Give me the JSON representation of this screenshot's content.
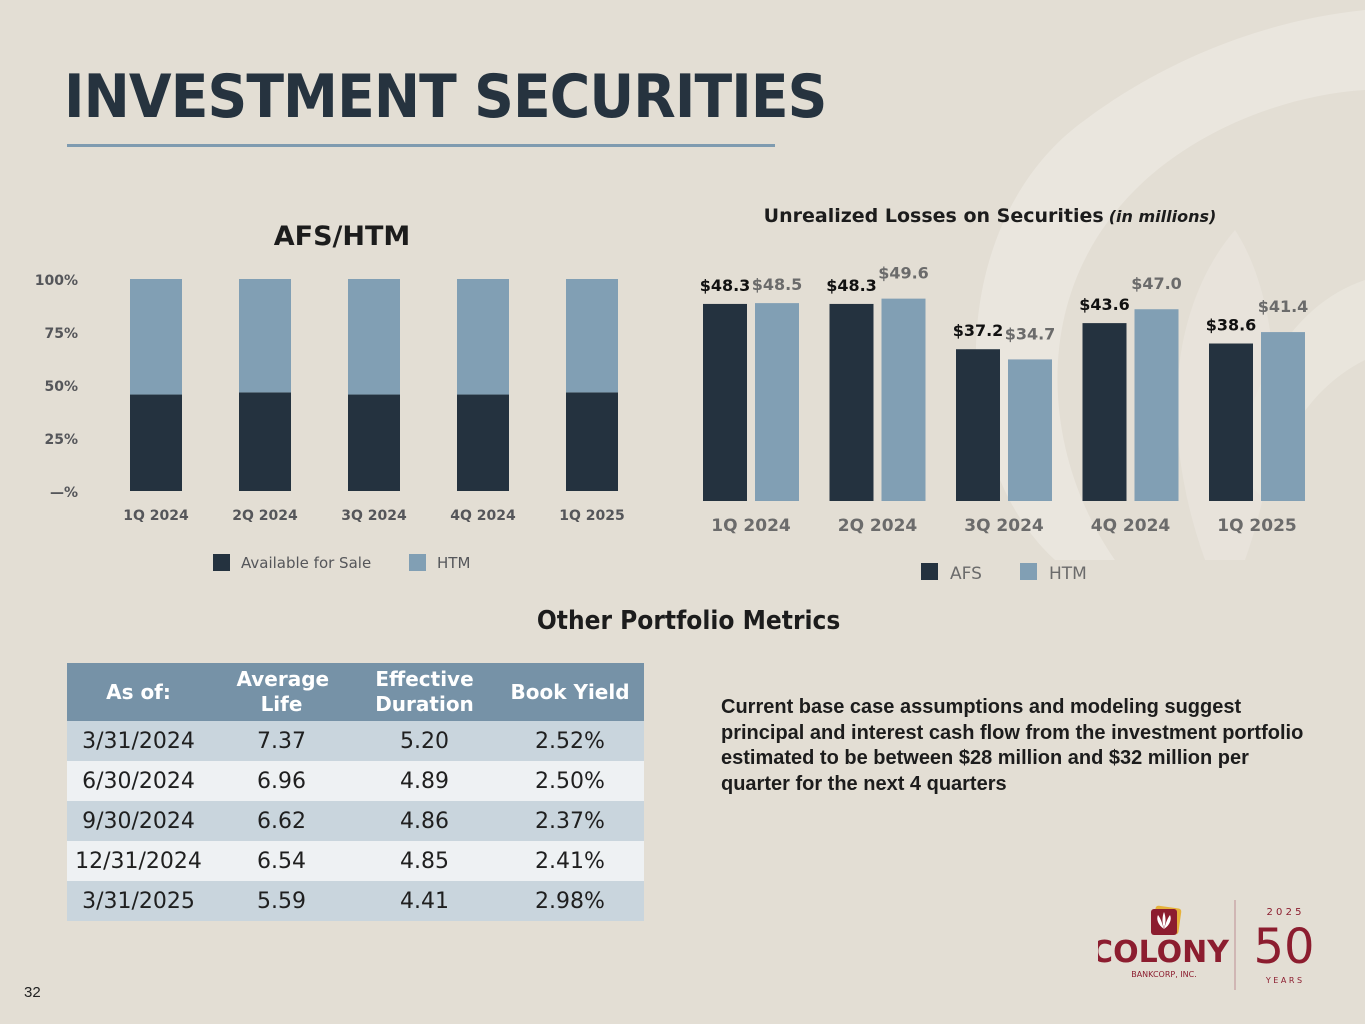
{
  "page": {
    "title": "INVESTMENT SECURITIES",
    "page_number": "32",
    "section_title": "Other Portfolio Metrics",
    "note": "Current base case assumptions and modeling suggest principal and interest cash flow from the investment portfolio estimated to be between $28 million and $32 million per quarter for the next 4 quarters"
  },
  "colors": {
    "afs": "#24323f",
    "htm": "#819fb4",
    "brand": "#8c1d2f",
    "accent_rule": "#7f9bb0"
  },
  "logo": {
    "name": "COLONY",
    "sub": "BANKCORP, INC.",
    "year": "2 0 2 5",
    "anniv": "50",
    "years": "Y E A R S"
  },
  "chart_data": [
    {
      "type": "bar",
      "stacked": true,
      "title": "AFS/HTM",
      "categories": [
        "1Q 2024",
        "2Q 2024",
        "3Q 2024",
        "4Q 2024",
        "1Q 2025"
      ],
      "series": [
        {
          "name": "Available for Sale",
          "values": [
            45.5,
            46.5,
            45.5,
            45.5,
            46.5
          ]
        },
        {
          "name": "HTM",
          "values": [
            54.5,
            53.5,
            54.5,
            54.5,
            53.5
          ]
        }
      ],
      "yticks": [
        "—%",
        "25%",
        "50%",
        "75%",
        "100%"
      ],
      "ylim": [
        0,
        100
      ],
      "xlabel": "",
      "ylabel": "",
      "legend": "bottom",
      "grid": false
    },
    {
      "type": "bar",
      "stacked": false,
      "title": "Unrealized Losses on Securities",
      "title_suffix": "(in millions)",
      "categories": [
        "1Q 2024",
        "2Q 2024",
        "3Q 2024",
        "4Q 2024",
        "1Q 2025"
      ],
      "series": [
        {
          "name": "AFS",
          "values": [
            48.3,
            48.3,
            37.2,
            43.6,
            38.6
          ],
          "labels": [
            "$48.3",
            "$48.3",
            "$37.2",
            "$43.6",
            "$38.6"
          ]
        },
        {
          "name": "HTM",
          "values": [
            48.5,
            49.6,
            34.7,
            47.0,
            41.4
          ],
          "labels": [
            "$48.5",
            "$49.6",
            "$34.7",
            "$47.0",
            "$41.4"
          ]
        }
      ],
      "ylim": [
        0,
        55
      ],
      "xlabel": "",
      "ylabel": "",
      "legend": "bottom",
      "grid": false
    }
  ],
  "table": {
    "headers": [
      "As of:",
      "Average Life",
      "Effective Duration",
      "Book Yield"
    ],
    "rows": [
      [
        "3/31/2024",
        "7.37",
        "5.20",
        "2.52%"
      ],
      [
        "6/30/2024",
        "6.96",
        "4.89",
        "2.50%"
      ],
      [
        "9/30/2024",
        "6.62",
        "4.86",
        "2.37%"
      ],
      [
        "12/31/2024",
        "6.54",
        "4.85",
        "2.41%"
      ],
      [
        "3/31/2025",
        "5.59",
        "4.41",
        "2.98%"
      ]
    ]
  }
}
